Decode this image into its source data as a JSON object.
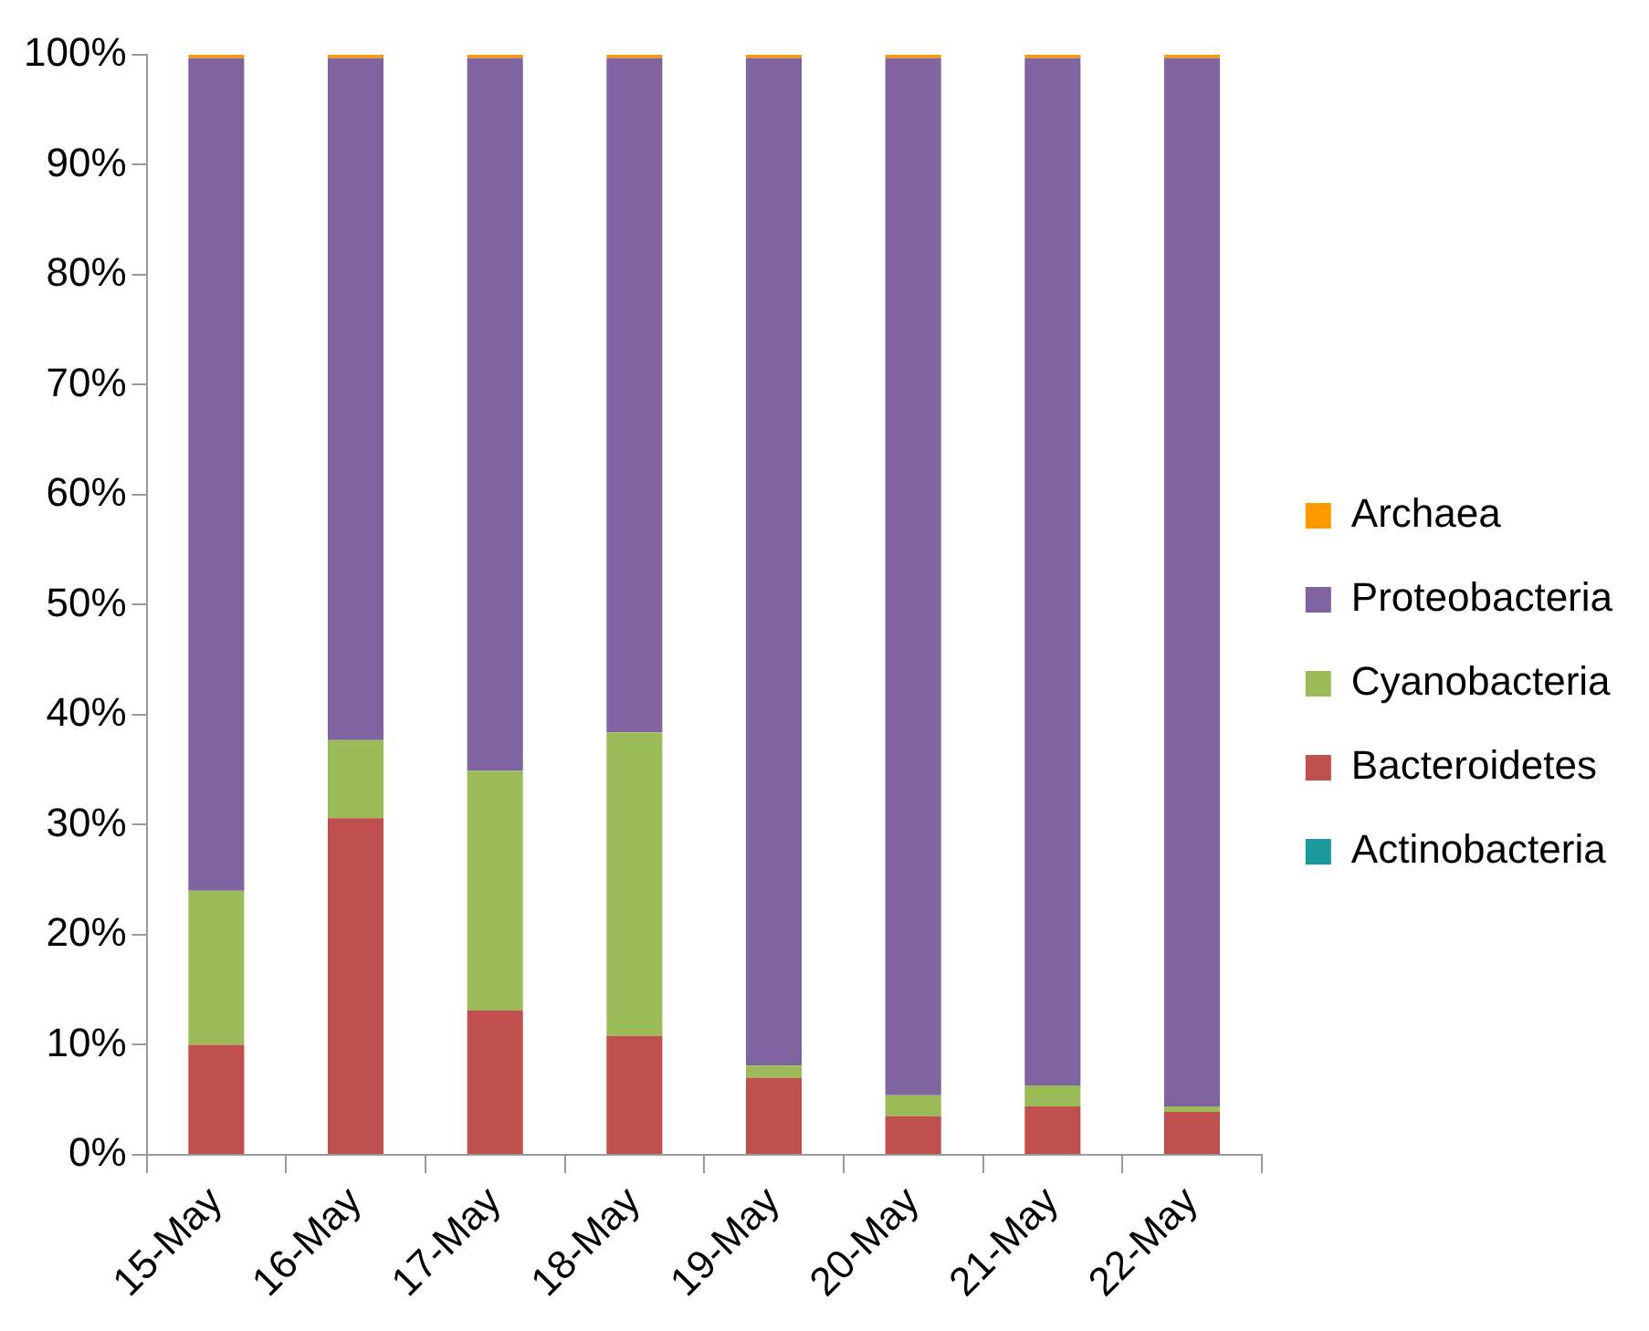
{
  "chart_data": {
    "type": "bar",
    "stacked": true,
    "categories": [
      "15-May",
      "16-May",
      "17-May",
      "18-May",
      "19-May",
      "20-May",
      "21-May",
      "22-May"
    ],
    "series": [
      {
        "name": "Actinobacteria",
        "color": "#1a9a9a",
        "values": [
          0,
          0,
          0,
          0,
          0,
          0,
          0,
          0
        ]
      },
      {
        "name": "Bacteroidetes",
        "color": "#c0504d",
        "values": [
          10,
          30.6,
          13.1,
          10.8,
          7,
          3.5,
          4.4,
          3.9
        ]
      },
      {
        "name": "Cyanobacteria",
        "color": "#9bbb59",
        "values": [
          14,
          7.1,
          21.8,
          27.6,
          1.1,
          1.9,
          1.9,
          0.5
        ]
      },
      {
        "name": "Proteobacteria",
        "color": "#8064a2",
        "values": [
          75.7,
          62,
          64.8,
          61.3,
          91.6,
          94.3,
          93.4,
          95.3
        ]
      },
      {
        "name": "Archaea",
        "color": "#ff9900",
        "values": [
          0.3,
          0.3,
          0.3,
          0.3,
          0.3,
          0.3,
          0.3,
          0.3
        ]
      }
    ],
    "ylim": [
      0,
      100
    ],
    "yticks": [
      {
        "value": 0,
        "label": "0%"
      },
      {
        "value": 10,
        "label": "10%"
      },
      {
        "value": 20,
        "label": "20%"
      },
      {
        "value": 30,
        "label": "30%"
      },
      {
        "value": 40,
        "label": "40%"
      },
      {
        "value": 50,
        "label": "50%"
      },
      {
        "value": 60,
        "label": "60%"
      },
      {
        "value": 70,
        "label": "70%"
      },
      {
        "value": 80,
        "label": "80%"
      },
      {
        "value": 90,
        "label": "90%"
      },
      {
        "value": 100,
        "label": "100%"
      }
    ],
    "grid": false,
    "legend": "right"
  }
}
